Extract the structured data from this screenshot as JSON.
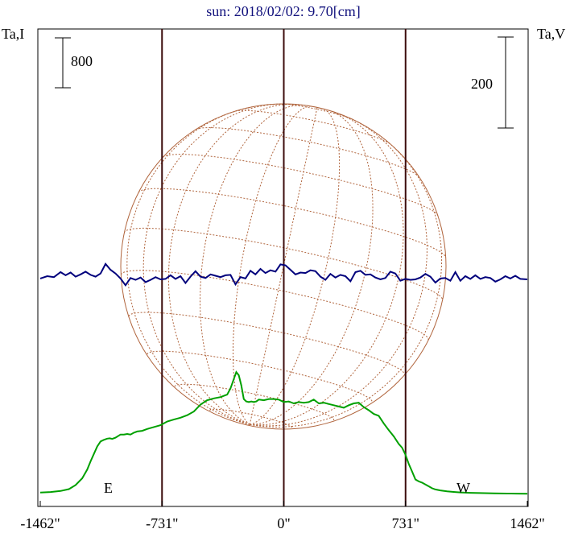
{
  "chart_data": {
    "type": "line",
    "title": "sun: 2018/02/02: 9.70[cm]",
    "left_axis_label": "Ta,I",
    "right_axis_label": "Ta,V",
    "left_scale_bar": "800",
    "right_scale_bar": "200",
    "limb_labels": {
      "east": "E",
      "west": "W"
    },
    "x_ticks": [
      "-1462\"",
      "-731\"",
      "0\"",
      "731\"",
      "1462\""
    ],
    "x_tick_values": [
      -1462,
      -731,
      0,
      731,
      1462
    ],
    "xlim": [
      -1462,
      1462
    ],
    "limb_positions_arcsec": [
      -731,
      0,
      731
    ],
    "series": [
      {
        "key": "I",
        "color": "#00a000",
        "x": [
          -1462,
          -1400,
          -1340,
          -1290,
          -1250,
          -1210,
          -1180,
          -1160,
          -1140,
          -1120,
          -1100,
          -1080,
          -1060,
          -1045,
          -1030,
          -1010,
          -980,
          -960,
          -940,
          -920,
          -900,
          -880,
          -850,
          -820,
          -780,
          -740,
          -700,
          -660,
          -620,
          -580,
          -540,
          -500,
          -460,
          -420,
          -380,
          -340,
          -320,
          -300,
          -285,
          -270,
          -255,
          -240,
          -225,
          -210,
          -195,
          -180,
          -165,
          -150,
          -120,
          -90,
          -60,
          -30,
          0,
          30,
          60,
          90,
          120,
          150,
          180,
          210,
          240,
          270,
          300,
          330,
          360,
          390,
          420,
          450,
          480,
          510,
          540,
          570,
          600,
          630,
          660,
          690,
          710,
          730,
          750,
          770,
          790,
          810,
          830,
          850,
          870,
          890,
          910,
          940,
          980,
          1020,
          1060,
          1120,
          1180,
          1260,
          1340,
          1400,
          1462
        ],
        "y": [
          80,
          89,
          106,
          136,
          200,
          308,
          448,
          580,
          700,
          820,
          900,
          925,
          945,
          950,
          940,
          960,
          1010,
          1010,
          1020,
          1010,
          1040,
          1060,
          1070,
          1100,
          1130,
          1160,
          1220,
          1250,
          1280,
          1320,
          1380,
          1490,
          1560,
          1590,
          1610,
          1650,
          1750,
          1900,
          2010,
          1960,
          1800,
          1580,
          1540,
          1530,
          1540,
          1530,
          1540,
          1570,
          1560,
          1580,
          1580,
          1570,
          1530,
          1540,
          1510,
          1530,
          1520,
          1530,
          1570,
          1510,
          1520,
          1500,
          1480,
          1460,
          1440,
          1480,
          1510,
          1520,
          1450,
          1400,
          1340,
          1310,
          1190,
          1080,
          980,
          860,
          800,
          690,
          540,
          420,
          290,
          260,
          240,
          210,
          180,
          150,
          130,
          115,
          100,
          90,
          82,
          76,
          72,
          68,
          65,
          63,
          62
        ]
      },
      {
        "key": "V",
        "color": "#00007c",
        "x": [
          -1462,
          -1420,
          -1380,
          -1340,
          -1310,
          -1280,
          -1250,
          -1220,
          -1190,
          -1160,
          -1130,
          -1100,
          -1070,
          -1040,
          -1010,
          -980,
          -950,
          -920,
          -890,
          -860,
          -830,
          -800,
          -770,
          -740,
          -710,
          -680,
          -650,
          -620,
          -590,
          -560,
          -530,
          -500,
          -470,
          -440,
          -410,
          -380,
          -350,
          -320,
          -290,
          -260,
          -230,
          -200,
          -170,
          -140,
          -110,
          -80,
          -50,
          -20,
          10,
          40,
          70,
          100,
          130,
          160,
          190,
          220,
          250,
          280,
          310,
          340,
          370,
          400,
          430,
          460,
          490,
          520,
          550,
          580,
          610,
          640,
          670,
          700,
          730,
          760,
          790,
          820,
          850,
          880,
          910,
          940,
          970,
          1000,
          1030,
          1060,
          1090,
          1120,
          1150,
          1180,
          1210,
          1240,
          1270,
          1300,
          1330,
          1360,
          1390,
          1420,
          1462
        ],
        "y": [
          2,
          7,
          5,
          16,
          9,
          15,
          6,
          11,
          17,
          10,
          6,
          13,
          34,
          21,
          13,
          2,
          -13,
          3,
          -1,
          4,
          -6,
          -1,
          5,
          0,
          1,
          9,
          1,
          7,
          -8,
          6,
          18,
          6,
          3,
          11,
          8,
          5,
          9,
          10,
          -11,
          5,
          2,
          19,
          11,
          23,
          14,
          20,
          17,
          33,
          31,
          21,
          11,
          15,
          14,
          20,
          18,
          6,
          -1,
          12,
          4,
          10,
          7,
          -4,
          16,
          19,
          10,
          11,
          4,
          0,
          3,
          17,
          13,
          -3,
          1,
          -1,
          0,
          4,
          12,
          6,
          -7,
          2,
          3,
          -3,
          16,
          -3,
          7,
          1,
          9,
          1,
          5,
          3,
          -5,
          0,
          7,
          2,
          8,
          1,
          0
        ]
      }
    ]
  }
}
